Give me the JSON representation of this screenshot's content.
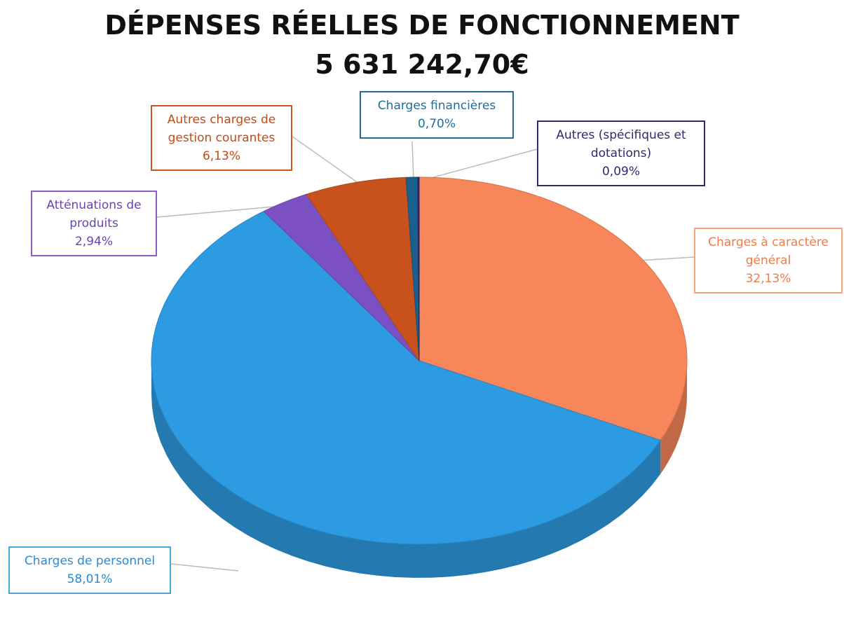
{
  "chart_data": {
    "type": "pie",
    "title": "DÉPENSES RÉELLES DE FONCTIONNEMENT",
    "subtitle": "5 631 242,70€",
    "categories": [
      "Charges à caractère général",
      "Charges de personnel",
      "Atténuations de produits",
      "Autres charges de gestion courantes",
      "Charges financières",
      "Autres (spécifiques et dotations)"
    ],
    "values": [
      32.13,
      58.01,
      2.94,
      6.13,
      0.7,
      0.09
    ],
    "value_labels": [
      "32,13%",
      "58,01%",
      "2,94%",
      "6,13%",
      "0,70%",
      "0,09%"
    ],
    "colors": [
      "#f7865a",
      "#2d9be2",
      "#7b50c2",
      "#c9521c",
      "#1b608c",
      "#2e2a6e"
    ]
  }
}
